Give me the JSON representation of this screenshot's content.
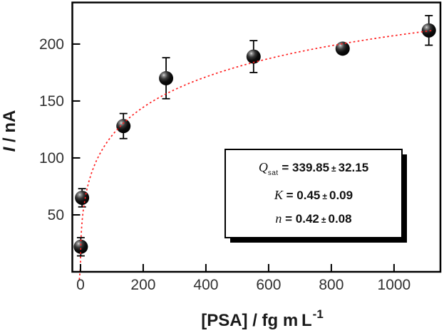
{
  "figure": {
    "background": "#ffffff"
  },
  "chart_data": {
    "type": "scatter",
    "title": "",
    "xlabel_base": "[PSA] / fg m L",
    "xlabel_exponent": "-1",
    "ylabel_var": "I",
    "ylabel_rest": " / nA",
    "xlim": [
      -26,
      1148
    ],
    "ylim": [
      0,
      236.5
    ],
    "xticks": [
      0,
      200,
      400,
      600,
      800,
      1000
    ],
    "yticks": [
      50,
      100,
      150,
      200
    ],
    "grid": false,
    "legend": "none",
    "points": [
      {
        "x": 1,
        "y": 22,
        "err": 8
      },
      {
        "x": 5,
        "y": 65,
        "err": 8
      },
      {
        "x": 137,
        "y": 128,
        "err": 11
      },
      {
        "x": 273,
        "y": 170,
        "err": 18
      },
      {
        "x": 552,
        "y": 189,
        "err": 14
      },
      {
        "x": 836,
        "y": 196,
        "err": 4
      },
      {
        "x": 1111,
        "y": 212,
        "err": 13
      }
    ],
    "fit_curve": {
      "model": "y = A*x^n / (1 + B*x^n)  (Langmuir-Freundlich shape matching plotted fit)",
      "A": 25.27,
      "B": 0.0669,
      "n": 0.42,
      "x_start": 0.02,
      "x_end": 1122
    },
    "colors": {
      "curve": "#ff1f1f",
      "marker": "#000000",
      "axis": "#000000",
      "tick_label": "#303030",
      "axis_label": "#1a1a1a"
    }
  },
  "fit_box": {
    "lines": [
      {
        "variable": "Q",
        "subscript": "sat",
        "equals": "=",
        "value": "339.85",
        "plusminus": "±",
        "uncertainty": "32.15"
      },
      {
        "variable": "K",
        "subscript": "",
        "equals": "=",
        "value": "0.45",
        "plusminus": "±",
        "uncertainty": "0.09"
      },
      {
        "variable": "n",
        "subscript": "",
        "equals": "=",
        "value": "0.42",
        "plusminus": "±",
        "uncertainty": "0.08"
      }
    ]
  }
}
